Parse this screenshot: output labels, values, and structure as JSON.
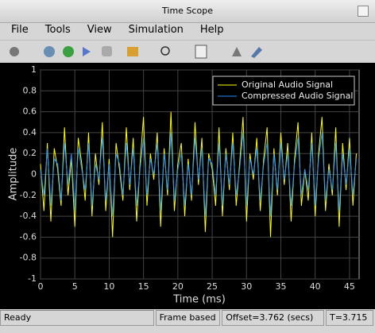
{
  "window": {
    "title": "Time Scope"
  },
  "menu": [
    "File",
    "Tools",
    "View",
    "Simulation",
    "Help"
  ],
  "status": {
    "state": "Ready",
    "mode": "Frame based",
    "offset": "Offset=3.762 (secs)",
    "time": "T=3.715"
  },
  "chart_data": {
    "type": "line",
    "xlabel": "Time (ms)",
    "ylabel": "Amplitude",
    "grid": true,
    "legend": "upper right",
    "xlim": [
      0,
      46.4
    ],
    "ylim": [
      -1,
      1
    ],
    "xticks": [
      0,
      5,
      10,
      15,
      20,
      25,
      30,
      35,
      40,
      45
    ],
    "yticks": [
      -1,
      -0.8,
      -0.6,
      -0.4,
      -0.2,
      0,
      0.2,
      0.4,
      0.6,
      0.8,
      1
    ],
    "x": [
      0,
      0.5,
      1,
      1.5,
      2,
      2.5,
      3,
      3.5,
      4,
      4.5,
      5,
      5.5,
      6,
      6.5,
      7,
      7.5,
      8,
      8.5,
      9,
      9.5,
      10,
      10.5,
      11,
      11.5,
      12,
      12.5,
      13,
      13.5,
      14,
      14.5,
      15,
      15.5,
      16,
      16.5,
      17,
      17.5,
      18,
      18.5,
      19,
      19.5,
      20,
      20.5,
      21,
      21.5,
      22,
      22.5,
      23,
      23.5,
      24,
      24.5,
      25,
      25.5,
      26,
      26.5,
      27,
      27.5,
      28,
      28.5,
      29,
      29.5,
      30,
      30.5,
      31,
      31.5,
      32,
      32.5,
      33,
      33.5,
      34,
      34.5,
      35,
      35.5,
      36,
      36.5,
      37,
      37.5,
      38,
      38.5,
      39,
      39.5,
      40,
      40.5,
      41,
      41.5,
      42,
      42.5,
      43,
      43.5,
      44,
      44.5,
      45,
      45.5,
      46
    ],
    "series": [
      {
        "name": "Original Audio Signal",
        "color": "#ffff00",
        "values": [
          0.1,
          -0.35,
          0.3,
          -0.45,
          0.25,
          0.05,
          -0.3,
          0.45,
          -0.2,
          0.15,
          -0.5,
          0.35,
          0.1,
          -0.25,
          0.4,
          -0.4,
          0.2,
          -0.1,
          0.5,
          -0.35,
          0.15,
          -0.6,
          0.3,
          0.05,
          -0.25,
          0.45,
          -0.15,
          0.35,
          -0.45,
          0.1,
          0.55,
          -0.3,
          0.2,
          -0.05,
          0.4,
          -0.5,
          0.25,
          -0.2,
          0.6,
          -0.35,
          0.1,
          0.3,
          -0.4,
          0.15,
          -0.25,
          0.5,
          -0.1,
          0.35,
          -0.55,
          0.2,
          0.05,
          -0.3,
          0.45,
          -0.4,
          0.25,
          -0.15,
          0.4,
          -0.3,
          0.1,
          0.55,
          -0.45,
          0.2,
          -0.05,
          0.35,
          -0.35,
          0.15,
          0.45,
          -0.6,
          0.25,
          -0.2,
          0.4,
          -0.1,
          0.3,
          -0.45,
          0.15,
          0.5,
          -0.3,
          0.05,
          -0.25,
          0.4,
          -0.4,
          0.2,
          0.55,
          -0.35,
          0.1,
          -0.2,
          0.45,
          -0.5,
          0.3,
          -0.15,
          0.35,
          -0.3,
          0.2
        ]
      },
      {
        "name": "Compressed Audio Signal",
        "color": "#1e90ff",
        "values": [
          0.05,
          -0.2,
          0.25,
          -0.3,
          0.15,
          0.1,
          -0.25,
          0.3,
          -0.1,
          0.2,
          -0.35,
          0.25,
          0.05,
          -0.15,
          0.3,
          -0.3,
          0.1,
          -0.05,
          0.35,
          -0.25,
          0.1,
          -0.4,
          0.2,
          0.1,
          -0.2,
          0.3,
          -0.1,
          0.25,
          -0.3,
          0.05,
          0.35,
          -0.2,
          0.15,
          0,
          0.3,
          -0.35,
          0.2,
          -0.15,
          0.4,
          -0.25,
          0.05,
          0.2,
          -0.3,
          0.1,
          -0.2,
          0.35,
          -0.05,
          0.25,
          -0.4,
          0.15,
          0.1,
          -0.2,
          0.3,
          -0.3,
          0.2,
          -0.1,
          0.3,
          -0.2,
          0.05,
          0.4,
          -0.3,
          0.15,
          0,
          0.25,
          -0.25,
          0.1,
          0.3,
          -0.4,
          0.2,
          -0.15,
          0.3,
          -0.05,
          0.2,
          -0.3,
          0.1,
          0.35,
          -0.2,
          0.05,
          -0.15,
          0.3,
          -0.3,
          0.15,
          0.4,
          -0.25,
          0.05,
          -0.15,
          0.3,
          -0.35,
          0.2,
          -0.1,
          0.25,
          -0.2,
          0.15
        ]
      }
    ]
  }
}
